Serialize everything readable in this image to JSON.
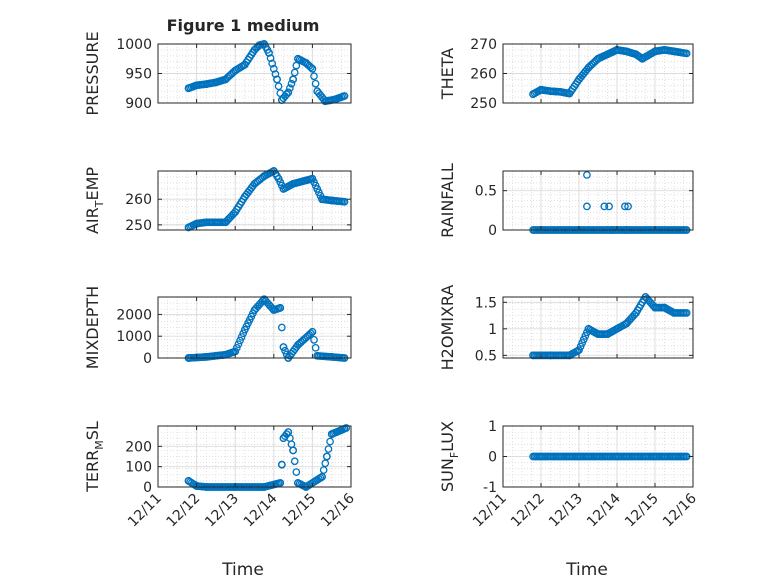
{
  "figure": {
    "title": "Figure 1 medium",
    "marker_color": "#0072BD"
  },
  "chart_data": [
    {
      "type": "scatter",
      "ylabel": "PRESSURE",
      "ylim": [
        900,
        1000
      ],
      "yticks": [
        900,
        950,
        1000
      ],
      "xlim": [
        "12/11",
        "12/16"
      ],
      "xticks": [
        "12/11",
        "12/12",
        "12/13",
        "12/14",
        "12/15",
        "12/16"
      ],
      "grid": true,
      "points": [
        [
          "12/11 19:00",
          925
        ],
        [
          "12/12 00:00",
          930
        ],
        [
          "12/12 06:00",
          932
        ],
        [
          "12/12 12:00",
          935
        ],
        [
          "12/12 18:00",
          940
        ],
        [
          "12/13 00:00",
          955
        ],
        [
          "12/13 06:00",
          965
        ],
        [
          "12/13 12:00",
          990
        ],
        [
          "12/13 15:00",
          998
        ],
        [
          "12/13 18:00",
          1000
        ],
        [
          "12/13 21:00",
          985
        ],
        [
          "12/14 02:00",
          940
        ],
        [
          "12/14 05:00",
          905
        ],
        [
          "12/14 09:00",
          918
        ],
        [
          "12/14 12:00",
          940
        ],
        [
          "12/14 15:00",
          975
        ],
        [
          "12/14 20:00",
          968
        ],
        [
          "12/15 00:00",
          958
        ],
        [
          "12/15 03:00",
          920
        ],
        [
          "12/15 08:00",
          903
        ],
        [
          "12/15 14:00",
          906
        ],
        [
          "12/15 20:00",
          912
        ]
      ]
    },
    {
      "type": "scatter",
      "ylabel": "THETA",
      "ylim": [
        250,
        270
      ],
      "yticks": [
        250,
        260,
        270
      ],
      "xlim": [
        "12/11",
        "12/16"
      ],
      "xticks": [
        "12/11",
        "12/12",
        "12/13",
        "12/14",
        "12/15",
        "12/16"
      ],
      "grid": true,
      "points": [
        [
          "12/11 19:00",
          253
        ],
        [
          "12/12 00:00",
          254.5
        ],
        [
          "12/12 06:00",
          254
        ],
        [
          "12/12 12:00",
          253.8
        ],
        [
          "12/12 18:00",
          253.2
        ],
        [
          "12/13 00:00",
          258
        ],
        [
          "12/13 06:00",
          262
        ],
        [
          "12/13 12:00",
          265
        ],
        [
          "12/13 18:00",
          266.5
        ],
        [
          "12/14 00:00",
          268
        ],
        [
          "12/14 06:00",
          267.5
        ],
        [
          "12/14 12:00",
          266.5
        ],
        [
          "12/14 16:00",
          265
        ],
        [
          "12/15 00:00",
          267.5
        ],
        [
          "12/15 06:00",
          268
        ],
        [
          "12/15 12:00",
          267.5
        ],
        [
          "12/15 20:00",
          266.8
        ]
      ]
    },
    {
      "type": "scatter",
      "ylabel": "AIR_TEMP",
      "ylabel_main": "AIR",
      "ylabel_sub": "T",
      "ylabel_rest": "EMP",
      "ylim": [
        248,
        271
      ],
      "yticks": [
        250,
        260
      ],
      "xlim": [
        "12/11",
        "12/16"
      ],
      "xticks": [
        "12/11",
        "12/12",
        "12/13",
        "12/14",
        "12/15",
        "12/16"
      ],
      "grid": true,
      "points": [
        [
          "12/11 19:00",
          249
        ],
        [
          "12/12 00:00",
          250.5
        ],
        [
          "12/12 06:00",
          251
        ],
        [
          "12/12 18:00",
          251
        ],
        [
          "12/13 00:00",
          255
        ],
        [
          "12/13 06:00",
          261
        ],
        [
          "12/13 12:00",
          266
        ],
        [
          "12/13 18:00",
          269
        ],
        [
          "12/14 00:00",
          271
        ],
        [
          "12/14 03:00",
          268
        ],
        [
          "12/14 06:00",
          264
        ],
        [
          "12/14 12:00",
          266
        ],
        [
          "12/15 00:00",
          268
        ],
        [
          "12/15 03:00",
          264
        ],
        [
          "12/15 06:00",
          260
        ],
        [
          "12/15 12:00",
          259.5
        ],
        [
          "12/15 20:00",
          259
        ]
      ]
    },
    {
      "type": "scatter",
      "ylabel": "RAINFALL",
      "ylim": [
        0,
        0.75
      ],
      "yticks": [
        0,
        0.5
      ],
      "xlim": [
        "12/11",
        "12/16"
      ],
      "xticks": [
        "12/11",
        "12/12",
        "12/13",
        "12/14",
        "12/15",
        "12/16"
      ],
      "grid": true,
      "baseline_value": 0,
      "baseline_range": [
        "12/11 19:00",
        "12/15 20:00"
      ],
      "points": [
        [
          "12/13 05:00",
          0.7
        ],
        [
          "12/13 05:00",
          0.3
        ],
        [
          "12/13 16:00",
          0.3
        ],
        [
          "12/13 19:00",
          0.3
        ],
        [
          "12/14 05:00",
          0.3
        ],
        [
          "12/14 07:00",
          0.3
        ],
        [
          "12/13 21:00",
          0
        ],
        [
          "12/14 06:00",
          0
        ]
      ]
    },
    {
      "type": "scatter",
      "ylabel": "MIXDEPTH",
      "ylim": [
        0,
        2800
      ],
      "yticks": [
        0,
        1000,
        2000
      ],
      "xlim": [
        "12/11",
        "12/16"
      ],
      "xticks": [
        "12/11",
        "12/12",
        "12/13",
        "12/14",
        "12/15",
        "12/16"
      ],
      "grid": true,
      "points": [
        [
          "12/11 19:00",
          0
        ],
        [
          "12/12 06:00",
          50
        ],
        [
          "12/12 18:00",
          150
        ],
        [
          "12/13 00:00",
          300
        ],
        [
          "12/13 06:00",
          1300
        ],
        [
          "12/13 12:00",
          2200
        ],
        [
          "12/13 18:00",
          2700
        ],
        [
          "12/14 00:00",
          2200
        ],
        [
          "12/14 04:00",
          2300
        ],
        [
          "12/14 06:00",
          500
        ],
        [
          "12/14 09:00",
          0
        ],
        [
          "12/14 15:00",
          600
        ],
        [
          "12/15 00:00",
          1200
        ],
        [
          "12/15 03:00",
          100
        ],
        [
          "12/15 12:00",
          50
        ],
        [
          "12/15 20:00",
          0
        ]
      ]
    },
    {
      "type": "scatter",
      "ylabel": "H2OMIXRA",
      "ylim": [
        0.45,
        1.6
      ],
      "yticks": [
        0.5,
        1,
        1.5
      ],
      "xlim": [
        "12/11",
        "12/16"
      ],
      "xticks": [
        "12/11",
        "12/12",
        "12/13",
        "12/14",
        "12/15",
        "12/16"
      ],
      "grid": true,
      "points": [
        [
          "12/11 19:00",
          0.5
        ],
        [
          "12/12 06:00",
          0.5
        ],
        [
          "12/12 18:00",
          0.5
        ],
        [
          "12/13 00:00",
          0.6
        ],
        [
          "12/13 03:00",
          0.8
        ],
        [
          "12/13 06:00",
          1.0
        ],
        [
          "12/13 12:00",
          0.9
        ],
        [
          "12/13 18:00",
          0.9
        ],
        [
          "12/14 00:00",
          1.0
        ],
        [
          "12/14 06:00",
          1.1
        ],
        [
          "12/14 12:00",
          1.3
        ],
        [
          "12/14 18:00",
          1.6
        ],
        [
          "12/15 00:00",
          1.4
        ],
        [
          "12/15 06:00",
          1.4
        ],
        [
          "12/15 12:00",
          1.3
        ],
        [
          "12/15 20:00",
          1.3
        ]
      ]
    },
    {
      "type": "scatter",
      "ylabel": "TERR_MSL",
      "ylabel_main": "TERR",
      "ylabel_sub": "M",
      "ylabel_rest": "SL",
      "ylim": [
        0,
        300
      ],
      "yticks": [
        0,
        100,
        200
      ],
      "xlim": [
        "12/11",
        "12/16"
      ],
      "xticks": [
        "12/11",
        "12/12",
        "12/13",
        "12/14",
        "12/15",
        "12/16"
      ],
      "grid": true,
      "points": [
        [
          "12/11 19:00",
          30
        ],
        [
          "12/12 00:00",
          5
        ],
        [
          "12/12 06:00",
          0
        ],
        [
          "12/13 00:00",
          0
        ],
        [
          "12/13 18:00",
          0
        ],
        [
          "12/14 04:00",
          20
        ],
        [
          "12/14 05:00",
          110
        ],
        [
          "12/14 06:00",
          240
        ],
        [
          "12/14 09:00",
          270
        ],
        [
          "12/14 12:00",
          180
        ],
        [
          "12/14 15:00",
          20
        ],
        [
          "12/14 20:00",
          0
        ],
        [
          "12/15 06:00",
          50
        ],
        [
          "12/15 09:00",
          150
        ],
        [
          "12/15 12:00",
          260
        ],
        [
          "12/15 18:00",
          280
        ],
        [
          "12/15 21:00",
          290
        ]
      ]
    },
    {
      "type": "scatter",
      "ylabel": "SUN_FLUX",
      "ylabel_main": "SUN",
      "ylabel_sub": "F",
      "ylabel_rest": "LUX",
      "ylim": [
        -1,
        1
      ],
      "yticks": [
        -1,
        0,
        1
      ],
      "xlim": [
        "12/11",
        "12/16"
      ],
      "xticks": [
        "12/11",
        "12/12",
        "12/13",
        "12/14",
        "12/15",
        "12/16"
      ],
      "xlabel": "Time",
      "grid": true,
      "baseline_value": 0,
      "baseline_range": [
        "12/11 19:00",
        "12/15 20:00"
      ],
      "points": []
    }
  ],
  "xlabel": "Time"
}
